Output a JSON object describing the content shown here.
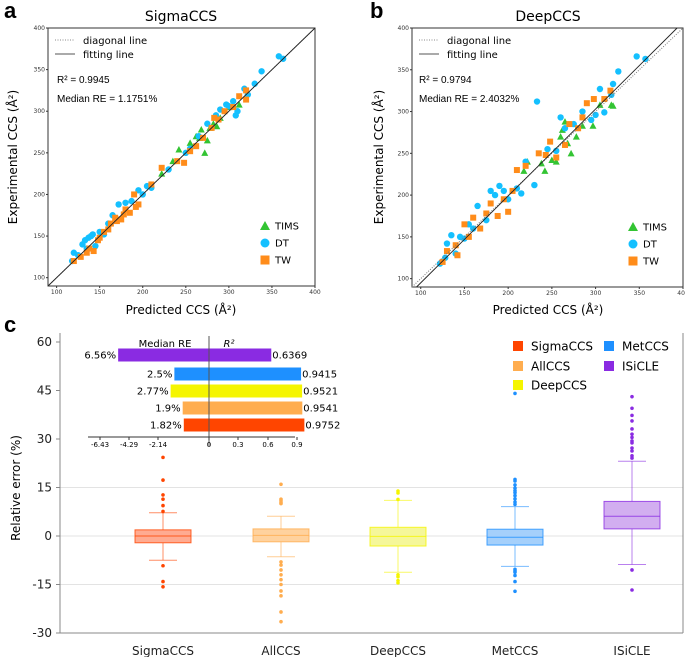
{
  "chart_data": [
    {
      "type": "scatter",
      "panel_label": "a",
      "title": "SigmaCCS",
      "xlabel": "Predicted CCS (Å²)",
      "ylabel": "Experimental CCS (Å²)",
      "xlim": [
        90,
        400
      ],
      "ylim": [
        90,
        400
      ],
      "ticks": [
        100,
        150,
        200,
        250,
        300,
        350,
        400
      ],
      "line_legend": [
        "diagonal line",
        "fitting line"
      ],
      "fit": {
        "slope": 1.0,
        "intercept": 0
      },
      "r2_text": "R² = 0.9945",
      "median_re_text": "Median RE = 1.1751%",
      "legend_position": "bottom-right",
      "series": [
        {
          "name": "TIMS",
          "marker": "triangle",
          "color": "#33c433",
          "points": [
            [
              222,
              225
            ],
            [
              235,
              240
            ],
            [
              242,
              254
            ],
            [
              255,
              262
            ],
            [
              262,
              270
            ],
            [
              268,
              278
            ],
            [
              272,
              250
            ],
            [
              275,
              265
            ],
            [
              282,
              285
            ],
            [
              290,
              292
            ],
            [
              300,
              305
            ],
            [
              312,
              308
            ],
            [
              286,
              282
            ],
            [
              266,
              268
            ],
            [
              278,
              280
            ]
          ]
        },
        {
          "name": "DT",
          "marker": "circle",
          "color": "#14c0ff",
          "points": [
            [
              118,
              120
            ],
            [
              120,
              130
            ],
            [
              125,
              127
            ],
            [
              130,
              140
            ],
            [
              133,
              145
            ],
            [
              137,
              148
            ],
            [
              140,
              150
            ],
            [
              145,
              138
            ],
            [
              150,
              155
            ],
            [
              155,
              152
            ],
            [
              165,
              175
            ],
            [
              172,
              188
            ],
            [
              180,
              190
            ],
            [
              195,
              205
            ],
            [
              200,
              200
            ],
            [
              205,
              210
            ],
            [
              210,
              208
            ],
            [
              230,
              230
            ],
            [
              250,
              250
            ],
            [
              255,
              255
            ],
            [
              265,
              270
            ],
            [
              275,
              285
            ],
            [
              285,
              295
            ],
            [
              290,
              302
            ],
            [
              300,
              306
            ],
            [
              305,
              312
            ],
            [
              308,
              295
            ],
            [
              310,
              300
            ],
            [
              318,
              327
            ],
            [
              322,
              320
            ],
            [
              330,
              333
            ],
            [
              338,
              348
            ],
            [
              358,
              366
            ],
            [
              363,
              363
            ],
            [
              135,
              135
            ],
            [
              142,
              152
            ],
            [
              160,
              165
            ],
            [
              187,
              192
            ],
            [
              297,
              308
            ]
          ]
        },
        {
          "name": "TW",
          "marker": "square",
          "color": "#ff8c1a",
          "points": [
            [
              120,
              120
            ],
            [
              128,
              125
            ],
            [
              135,
              130
            ],
            [
              138,
              135
            ],
            [
              143,
              132
            ],
            [
              148,
              145
            ],
            [
              155,
              155
            ],
            [
              160,
              158
            ],
            [
              163,
              165
            ],
            [
              170,
              168
            ],
            [
              175,
              170
            ],
            [
              180,
              182
            ],
            [
              185,
              178
            ],
            [
              190,
              200
            ],
            [
              195,
              188
            ],
            [
              210,
              212
            ],
            [
              222,
              232
            ],
            [
              240,
              240
            ],
            [
              248,
              238
            ],
            [
              255,
              252
            ],
            [
              262,
              258
            ],
            [
              270,
              268
            ],
            [
              280,
              280
            ],
            [
              288,
              290
            ],
            [
              295,
              300
            ],
            [
              305,
              305
            ],
            [
              312,
              318
            ],
            [
              320,
              314
            ],
            [
              320,
              325
            ],
            [
              150,
              148
            ],
            [
              168,
              172
            ],
            [
              178,
              176
            ],
            [
              192,
              185
            ],
            [
              283,
              292
            ]
          ]
        }
      ]
    },
    {
      "type": "scatter",
      "panel_label": "b",
      "title": "DeepCCS",
      "xlabel": "Predicted CCS (Å²)",
      "ylabel": "Experimental CCS (Å²)",
      "xlim": [
        90,
        400
      ],
      "ylim": [
        90,
        400
      ],
      "ticks": [
        100,
        150,
        200,
        250,
        300,
        350,
        400
      ],
      "line_legend": [
        "diagonal line",
        "fitting line"
      ],
      "fit": {
        "slope": 1.04,
        "intercept": -9
      },
      "r2_text": "R² = 0.9794",
      "median_re_text": "Median RE = 2.4032%",
      "legend_position": "bottom-right",
      "series": [
        {
          "name": "TIMS",
          "marker": "triangle",
          "color": "#33c433",
          "points": [
            [
              218,
              229
            ],
            [
              222,
              240
            ],
            [
              238,
              238
            ],
            [
              242,
              229
            ],
            [
              250,
              242
            ],
            [
              255,
              240
            ],
            [
              260,
              270
            ],
            [
              262,
              278
            ],
            [
              265,
              288
            ],
            [
              268,
              262
            ],
            [
              272,
              250
            ],
            [
              278,
              270
            ],
            [
              285,
              283
            ],
            [
              297,
              283
            ],
            [
              305,
              308
            ],
            [
              318,
              308
            ],
            [
              320,
              307
            ]
          ]
        },
        {
          "name": "DT",
          "marker": "circle",
          "color": "#14c0ff",
          "points": [
            [
              122,
              118
            ],
            [
              128,
              125
            ],
            [
              130,
              142
            ],
            [
              135,
              152
            ],
            [
              140,
              130
            ],
            [
              145,
              150
            ],
            [
              150,
              148
            ],
            [
              155,
              165
            ],
            [
              160,
              160
            ],
            [
              165,
              187
            ],
            [
              175,
              170
            ],
            [
              180,
              205
            ],
            [
              185,
              200
            ],
            [
              190,
              211
            ],
            [
              195,
              205
            ],
            [
              200,
              195
            ],
            [
              210,
              208
            ],
            [
              215,
              202
            ],
            [
              220,
              240
            ],
            [
              230,
              212
            ],
            [
              233,
              312
            ],
            [
              245,
              255
            ],
            [
              255,
              253
            ],
            [
              260,
              293
            ],
            [
              265,
              280
            ],
            [
              275,
              285
            ],
            [
              285,
              300
            ],
            [
              295,
              290
            ],
            [
              300,
              296
            ],
            [
              305,
              327
            ],
            [
              310,
              299
            ],
            [
              318,
              320
            ],
            [
              320,
              333
            ],
            [
              326,
              348
            ],
            [
              347,
              366
            ],
            [
              357,
              363
            ]
          ]
        },
        {
          "name": "TW",
          "marker": "square",
          "color": "#ff8c1a",
          "points": [
            [
              125,
              120
            ],
            [
              130,
              133
            ],
            [
              140,
              140
            ],
            [
              142,
              128
            ],
            [
              150,
              165
            ],
            [
              155,
              150
            ],
            [
              160,
              173
            ],
            [
              168,
              160
            ],
            [
              175,
              178
            ],
            [
              180,
              190
            ],
            [
              188,
              175
            ],
            [
              195,
              195
            ],
            [
              200,
              180
            ],
            [
              205,
              205
            ],
            [
              210,
              230
            ],
            [
              220,
              235
            ],
            [
              235,
              250
            ],
            [
              243,
              248
            ],
            [
              248,
              264
            ],
            [
              255,
              245
            ],
            [
              265,
              260
            ],
            [
              270,
              285
            ],
            [
              280,
              280
            ],
            [
              285,
              293
            ],
            [
              290,
              310
            ],
            [
              298,
              315
            ],
            [
              310,
              315
            ],
            [
              317,
              325
            ]
          ]
        }
      ]
    },
    {
      "type": "box",
      "panel_label": "c",
      "ylabel": "Relative error (%)",
      "ylim": [
        -30,
        60
      ],
      "yticks": [
        60,
        45,
        30,
        15,
        0,
        -15,
        -30
      ],
      "grid_lines": [
        15,
        0,
        -15
      ],
      "legend_position": "top-right",
      "categories": [
        "SigmaCCS",
        "AllCCS",
        "DeepCCS",
        "MetCCS",
        "ISiCLE"
      ],
      "series": [
        {
          "name": "SigmaCCS",
          "color": "#ff4500",
          "fill": "#ffab91",
          "median": 0,
          "q1": -2.1,
          "q3": 1.9,
          "whisker_low": -7.5,
          "whisker_high": 7.2,
          "outliers": [
            24.3,
            17.3,
            12.7,
            11.4,
            9.4,
            7.6,
            -9.2,
            -14.1,
            -15.7
          ]
        },
        {
          "name": "AllCCS",
          "color": "#ffad4f",
          "fill": "#ffd29e",
          "median": 0.2,
          "q1": -1.8,
          "q3": 2.2,
          "whisker_low": -6.4,
          "whisker_high": 6.1,
          "outliers": [
            16.0,
            11.4,
            10.9,
            10.4,
            10.0,
            -8.0,
            -9.0,
            -10.5,
            -12.0,
            -13.5,
            -15.0,
            -17.0,
            -18.5,
            -23.5,
            -26.5
          ]
        },
        {
          "name": "DeepCCS",
          "color": "#f5f500",
          "fill": "#f5f79a",
          "median": -0.1,
          "q1": -3.1,
          "q3": 2.7,
          "whisker_low": -11.2,
          "whisker_high": 11.0,
          "outliers": [
            13.9,
            13.3,
            11.3,
            -12.0,
            -12.6,
            -13.8,
            -14.5
          ]
        },
        {
          "name": "MetCCS",
          "color": "#1e90ff",
          "fill": "#a5d0fb",
          "median": -0.4,
          "q1": -2.8,
          "q3": 2.1,
          "whisker_low": -9.4,
          "whisker_high": 9.1,
          "outliers": [
            44.1,
            17.5,
            17.0,
            15.8,
            14.8,
            14.0,
            13.4,
            12.5,
            11.5,
            10.5,
            9.8,
            -10.3,
            -10.8,
            -11.2,
            -12.2,
            -14.1,
            -17.1
          ]
        },
        {
          "name": "ISiCLE",
          "color": "#8a2be2",
          "fill": "#d2aef0",
          "median": 6.1,
          "q1": 2.2,
          "q3": 10.7,
          "whisker_low": -8.8,
          "whisker_high": 23.1,
          "outliers": [
            43.1,
            39.5,
            37.3,
            35.6,
            33.1,
            31.5,
            30.5,
            29.4,
            28.8,
            27.2,
            26.3,
            24.8,
            24.1,
            -10.5,
            -16.7
          ]
        }
      ],
      "inset": {
        "type": "bar",
        "left_header": "Median RE",
        "right_header": "R²",
        "left_ticks": [
          "-6.43",
          "-4.29",
          "-2.14",
          "0"
        ],
        "right_ticks": [
          "0.3",
          "0.6",
          "0.9"
        ],
        "bars": [
          {
            "model": "ISiCLE",
            "median_re": 6.56,
            "median_re_label": "6.56%",
            "r2": 0.6369,
            "r2_label": "0.6369",
            "color": "#8a2be2"
          },
          {
            "model": "MetCCS",
            "median_re": 2.5,
            "median_re_label": "2.5%",
            "r2": 0.9415,
            "r2_label": "0.9415",
            "color": "#1e90ff"
          },
          {
            "model": "DeepCCS",
            "median_re": 2.77,
            "median_re_label": "2.77%",
            "r2": 0.9521,
            "r2_label": "0.9521",
            "color": "#f5f500"
          },
          {
            "model": "AllCCS",
            "median_re": 1.9,
            "median_re_label": "1.9%",
            "r2": 0.9541,
            "r2_label": "0.9541",
            "color": "#ffad4f"
          },
          {
            "model": "SigmaCCS",
            "median_re": 1.82,
            "median_re_label": "1.82%",
            "r2": 0.9752,
            "r2_label": "0.9752",
            "color": "#ff4500"
          }
        ]
      }
    }
  ]
}
